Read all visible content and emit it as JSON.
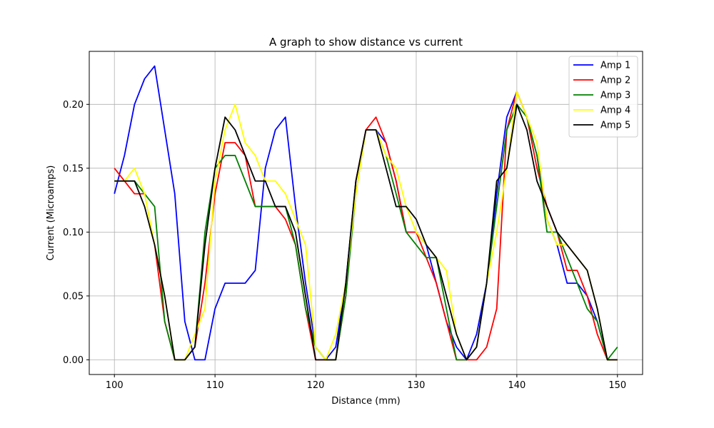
{
  "chart_data": {
    "type": "line",
    "title": "A graph to show distance vs current",
    "xlabel": "Distance (mm)",
    "ylabel": "Current (Microamps)",
    "xlim": [
      97.5,
      152.5
    ],
    "ylim": [
      -0.0115,
      0.2415
    ],
    "xticks": [
      100,
      110,
      120,
      130,
      140,
      150
    ],
    "yticks": [
      0.0,
      0.05,
      0.1,
      0.15,
      0.2
    ],
    "xtick_labels": [
      "100",
      "110",
      "120",
      "130",
      "140",
      "150"
    ],
    "ytick_labels": [
      "0.00",
      "0.05",
      "0.10",
      "0.15",
      "0.20"
    ],
    "grid": true,
    "legend_position": "top-right",
    "series": [
      {
        "name": "Amp 1",
        "color": "#0000ff",
        "x": [
          100,
          101,
          102,
          103,
          104,
          105,
          106,
          107,
          108,
          109,
          110,
          111,
          112,
          113,
          114,
          115,
          116,
          117,
          118,
          119,
          120,
          121,
          122,
          123,
          124,
          125,
          126,
          127,
          128,
          129,
          130,
          131,
          132,
          133,
          134,
          135,
          136,
          137,
          138,
          139,
          140,
          141,
          142,
          143,
          144,
          145,
          146,
          147,
          148,
          149,
          150
        ],
        "y": [
          0.13,
          0.16,
          0.2,
          0.22,
          0.23,
          0.18,
          0.13,
          0.03,
          0.0,
          0.0,
          0.04,
          0.06,
          0.06,
          0.06,
          0.07,
          0.15,
          0.18,
          0.19,
          0.12,
          0.06,
          0.01,
          0.0,
          0.01,
          0.06,
          0.14,
          0.18,
          0.18,
          0.17,
          0.14,
          0.1,
          0.1,
          0.09,
          0.06,
          0.03,
          0.01,
          0.0,
          0.02,
          0.06,
          0.13,
          0.19,
          0.21,
          0.19,
          0.16,
          0.11,
          0.09,
          0.06,
          0.06,
          0.05,
          0.03,
          0.0,
          0.0
        ]
      },
      {
        "name": "Amp 2",
        "color": "#ff0000",
        "x": [
          100,
          101,
          102,
          103,
          null,
          104,
          105,
          106,
          107,
          108,
          109,
          110,
          111,
          112,
          113,
          114,
          115,
          116,
          117,
          118,
          119,
          120,
          121,
          122,
          123,
          124,
          125,
          126,
          127,
          128,
          129,
          130,
          131,
          132,
          133,
          134,
          135,
          136,
          137,
          138,
          139,
          140,
          141,
          142,
          143,
          144,
          145,
          146,
          147,
          148,
          149,
          150
        ],
        "y": [
          0.15,
          0.14,
          0.13,
          0.13,
          null,
          0.09,
          0.03,
          0.0,
          0.0,
          0.01,
          0.06,
          0.13,
          0.17,
          0.17,
          0.16,
          0.12,
          0.12,
          0.12,
          0.11,
          0.09,
          0.04,
          0.0,
          0.0,
          0.0,
          0.05,
          0.14,
          0.18,
          0.19,
          0.17,
          0.14,
          0.1,
          0.1,
          0.08,
          0.06,
          0.03,
          0.0,
          0.0,
          0.0,
          0.01,
          0.04,
          0.18,
          0.21,
          0.19,
          0.15,
          0.12,
          0.1,
          0.07,
          0.07,
          0.05,
          0.02,
          0.0,
          0.0
        ]
      },
      {
        "name": "Amp 3",
        "color": "#008000",
        "x": [
          100,
          101,
          102,
          103,
          104,
          105,
          106,
          107,
          108,
          109,
          110,
          111,
          112,
          113,
          114,
          115,
          116,
          117,
          118,
          119,
          120,
          121,
          122,
          123,
          124,
          125,
          126,
          127,
          128,
          129,
          130,
          131,
          132,
          133,
          134,
          135,
          136,
          137,
          138,
          139,
          140,
          141,
          142,
          143,
          144,
          145,
          146,
          147,
          148,
          149,
          150
        ],
        "y": [
          0.14,
          0.14,
          0.14,
          0.13,
          0.12,
          0.03,
          0.0,
          0.0,
          0.01,
          0.1,
          0.15,
          0.16,
          0.16,
          0.14,
          0.12,
          0.12,
          0.12,
          0.12,
          0.09,
          0.04,
          0.01,
          0.0,
          0.0,
          0.05,
          0.13,
          0.18,
          0.18,
          0.16,
          0.13,
          0.1,
          0.09,
          0.08,
          0.08,
          0.04,
          0.0,
          0.0,
          0.01,
          0.06,
          0.12,
          0.18,
          0.2,
          0.19,
          0.16,
          0.1,
          0.1,
          0.08,
          0.06,
          0.04,
          0.03,
          0.0,
          0.01
        ]
      },
      {
        "name": "Amp 4",
        "color": "#ffff00",
        "x": [
          100,
          101,
          102,
          103,
          104,
          105,
          106,
          107,
          108,
          109,
          110,
          111,
          112,
          113,
          114,
          115,
          116,
          117,
          118,
          119,
          120,
          121,
          122,
          123,
          124,
          125,
          126,
          127,
          128,
          129,
          130,
          131,
          132,
          133,
          134,
          135,
          136,
          137,
          138,
          139,
          140,
          141,
          142,
          143,
          144,
          145,
          146,
          147,
          148,
          149,
          150
        ],
        "y": [
          0.14,
          0.14,
          0.15,
          0.13,
          0.09,
          0.05,
          0.0,
          0.0,
          0.02,
          0.04,
          0.14,
          0.18,
          0.2,
          0.17,
          0.16,
          0.14,
          0.14,
          0.13,
          0.11,
          0.09,
          0.01,
          0.0,
          0.02,
          0.06,
          0.13,
          0.18,
          0.18,
          0.16,
          0.15,
          0.12,
          0.1,
          0.09,
          0.08,
          0.07,
          0.02,
          0.0,
          0.01,
          0.06,
          0.1,
          0.15,
          0.21,
          0.19,
          0.17,
          0.11,
          0.09,
          0.09,
          0.08,
          0.07,
          0.04,
          0.0,
          0.0
        ]
      },
      {
        "name": "Amp 5",
        "color": "#000000",
        "x": [
          100,
          101,
          102,
          103,
          104,
          105,
          106,
          107,
          108,
          109,
          110,
          111,
          112,
          113,
          114,
          115,
          116,
          117,
          118,
          119,
          120,
          121,
          122,
          123,
          124,
          125,
          126,
          127,
          128,
          129,
          130,
          131,
          132,
          133,
          134,
          135,
          136,
          137,
          138,
          139,
          140,
          141,
          142,
          143,
          144,
          145,
          146,
          147,
          148,
          149,
          150
        ],
        "y": [
          0.14,
          0.14,
          0.14,
          0.12,
          0.09,
          0.05,
          0.0,
          0.0,
          0.01,
          0.09,
          0.15,
          0.19,
          0.18,
          0.16,
          0.14,
          0.14,
          0.12,
          0.12,
          0.1,
          0.05,
          0.0,
          0.0,
          0.0,
          0.06,
          0.14,
          0.18,
          0.18,
          0.15,
          0.12,
          0.12,
          0.11,
          0.09,
          0.08,
          0.05,
          0.02,
          0.0,
          0.01,
          0.06,
          0.14,
          0.15,
          0.2,
          0.18,
          0.14,
          0.12,
          0.1,
          0.09,
          0.08,
          0.07,
          0.04,
          0.0,
          0.0
        ]
      }
    ]
  }
}
